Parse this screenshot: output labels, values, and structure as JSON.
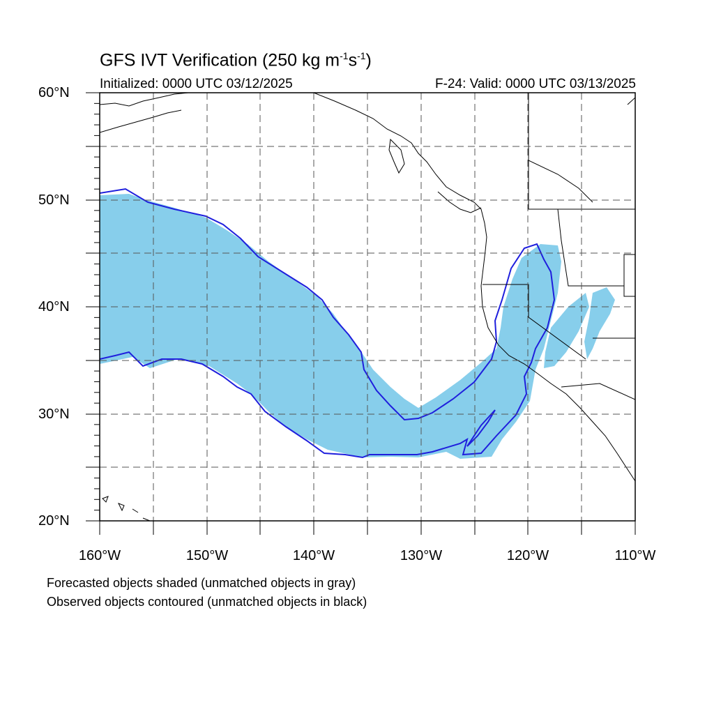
{
  "title": "GFS IVT Verification (250 kg m-1s-1)",
  "title_parts": {
    "main": "GFS IVT Verification (250 kg m",
    "exp1": "-1",
    "mid": "s",
    "exp2": "-1",
    "end": ")"
  },
  "initialized": "Initialized: 0000 UTC 03/12/2025",
  "valid": "F-24: Valid: 0000 UTC 03/13/2025",
  "axes": {
    "lat_labels": [
      "60°N",
      "50°N",
      "40°N",
      "30°N",
      "20°N"
    ],
    "lon_labels": [
      "160°W",
      "150°W",
      "140°W",
      "130°W",
      "120°W",
      "110°W"
    ],
    "lon_range": [
      -160,
      -110
    ],
    "lat_range": [
      20,
      60
    ]
  },
  "legend": {
    "forecast": "Forecasted objects shaded (unmatched objects in gray)",
    "observed": "Observed objects contoured (unmatched objects in black)"
  },
  "colors": {
    "forecast_fill": "#87ceeb",
    "observed_contour": "#1f1fdd",
    "coastline": "#000000",
    "grid": "#555555"
  }
}
